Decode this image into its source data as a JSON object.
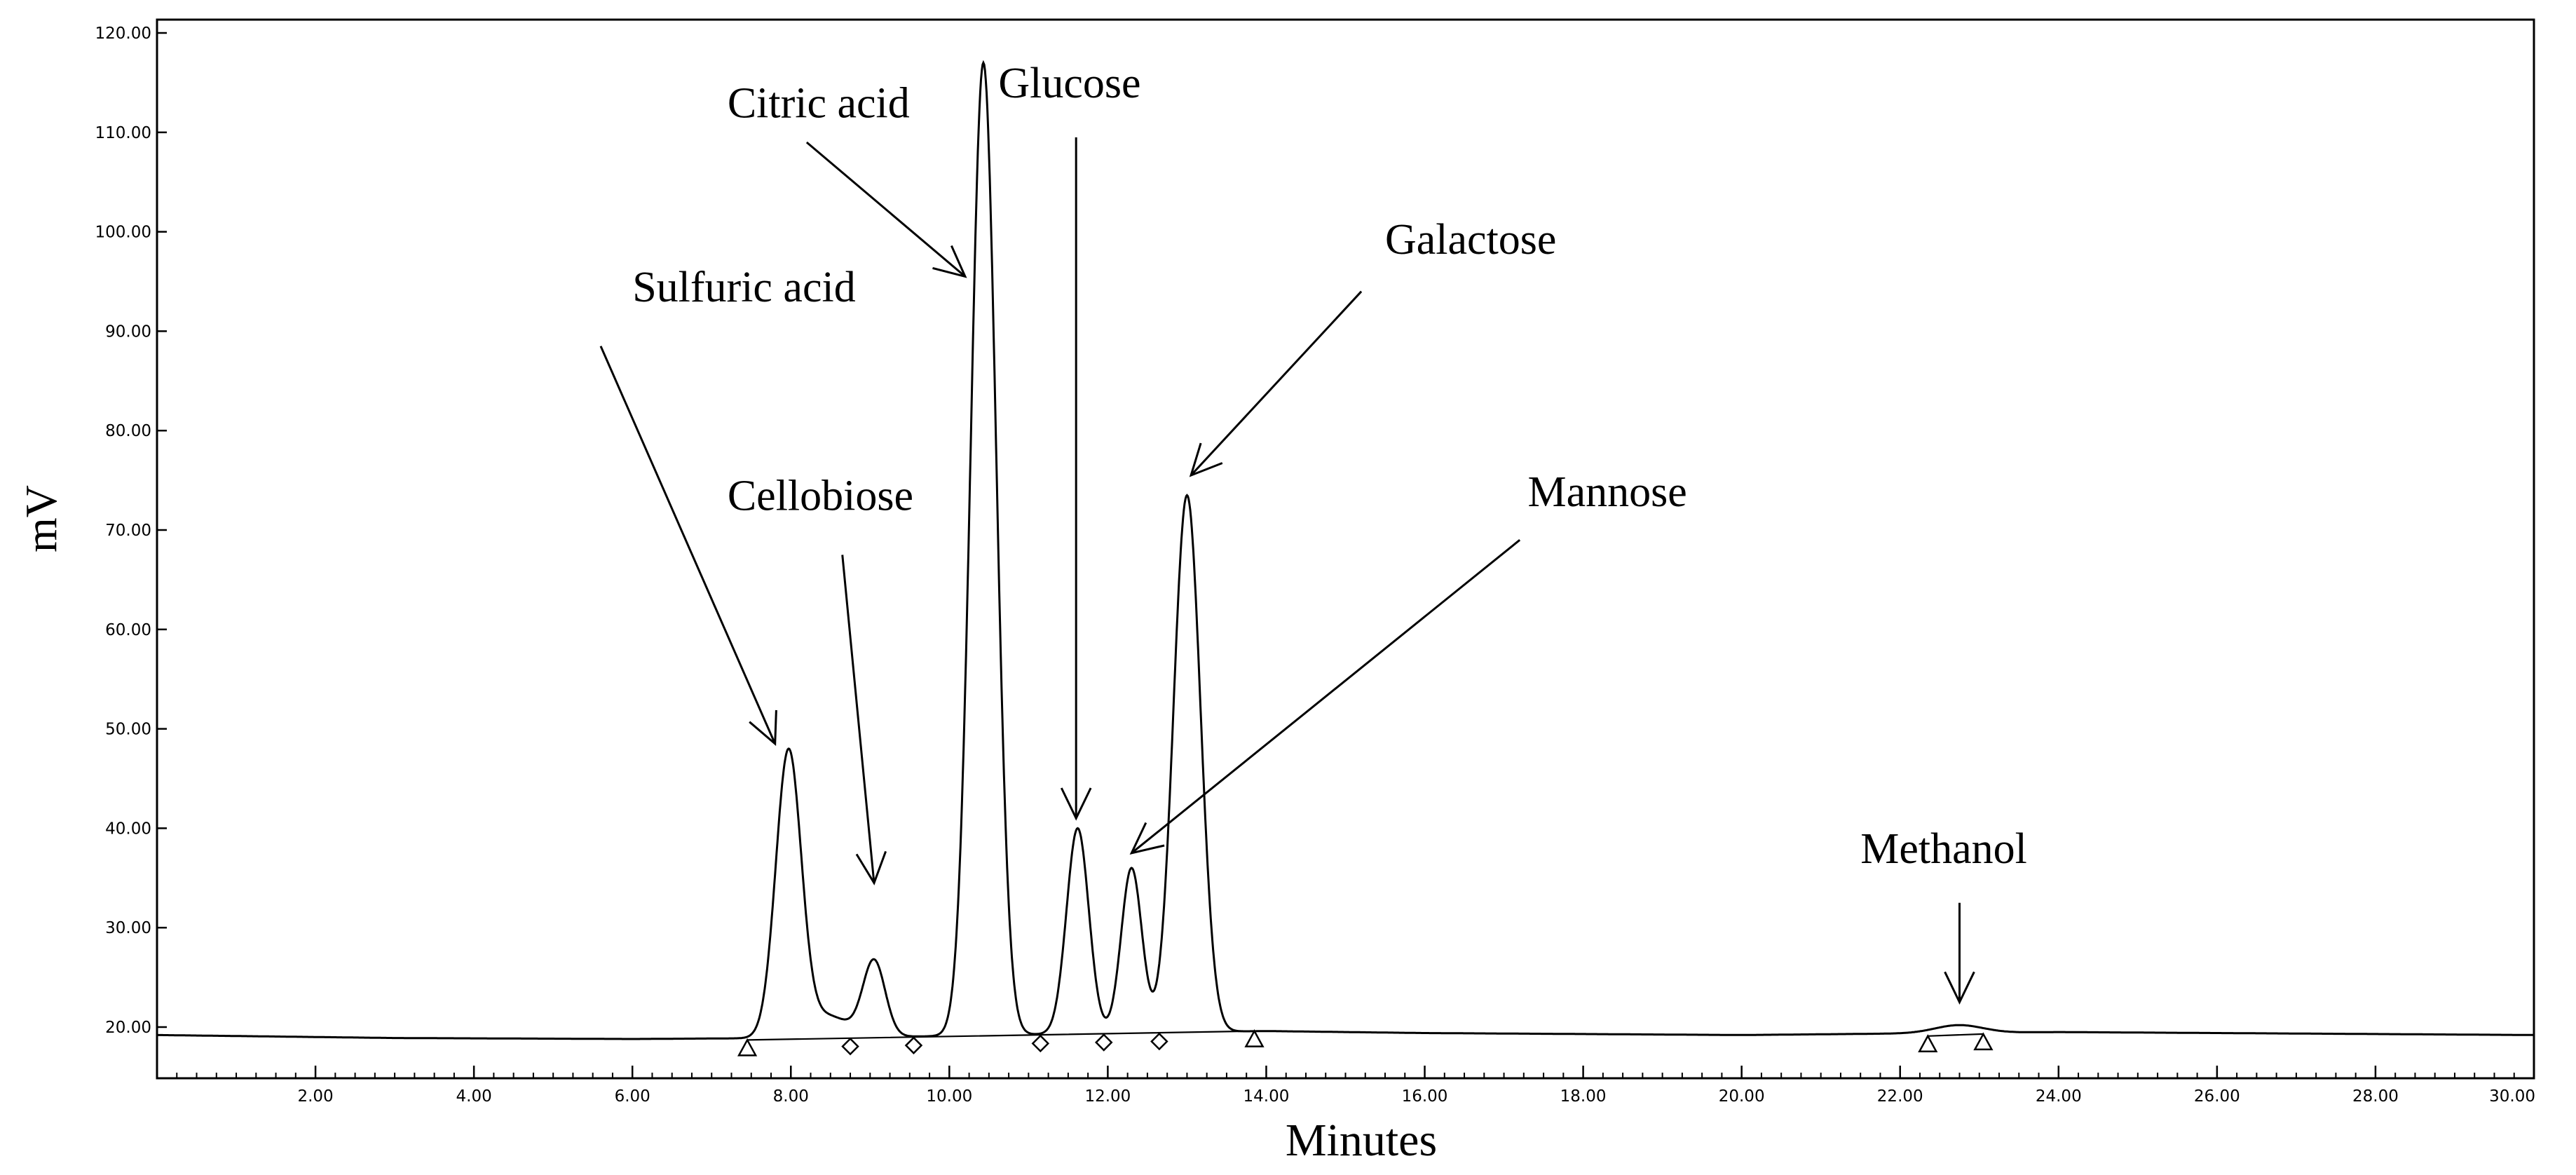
{
  "chart_data": {
    "type": "line",
    "title": "",
    "xlabel": "Minutes",
    "ylabel": "mV",
    "xlim": [
      0,
      30
    ],
    "ylim": [
      15,
      120
    ],
    "grid": false,
    "x_ticks": [
      2,
      4,
      6,
      8,
      10,
      12,
      14,
      16,
      18,
      20,
      22,
      24,
      26,
      28,
      30
    ],
    "x_tick_labels": [
      "2.00",
      "4.00",
      "6.00",
      "8.00",
      "10.00",
      "12.00",
      "14.00",
      "16.00",
      "18.00",
      "20.00",
      "22.00",
      "24.00",
      "26.00",
      "28.00",
      "30.00"
    ],
    "y_ticks": [
      20,
      30,
      40,
      50,
      60,
      70,
      80,
      90,
      100,
      110,
      120
    ],
    "y_tick_labels": [
      "20.00",
      "30.00",
      "40.00",
      "50.00",
      "60.00",
      "70.00",
      "80.00",
      "90.00",
      "100.00",
      "110.00",
      "120.00"
    ],
    "baseline": [
      [
        0,
        19.2
      ],
      [
        3,
        18.9
      ],
      [
        6,
        18.8
      ],
      [
        8,
        18.9
      ],
      [
        10,
        19.1
      ],
      [
        12,
        19.4
      ],
      [
        14,
        19.6
      ],
      [
        16,
        19.4
      ],
      [
        20,
        19.2
      ],
      [
        24,
        19.5
      ],
      [
        30,
        19.2
      ]
    ],
    "series": [
      {
        "peaks": [
          {
            "name": "Sulfuric acid",
            "rt": 7.97,
            "height": 47.5,
            "width": 0.16
          },
          {
            "name": "Cellobiose",
            "rt": 9.05,
            "height": 26.6,
            "width": 0.14
          },
          {
            "name": "Citric acid",
            "rt": 10.43,
            "height": 117,
            "width": 0.16
          },
          {
            "name": "Glucose",
            "rt": 11.62,
            "height": 40,
            "width": 0.14
          },
          {
            "name": "Mannose",
            "rt": 12.3,
            "height": 36,
            "width": 0.13
          },
          {
            "name": "Galactose",
            "rt": 13.0,
            "height": 73.5,
            "width": 0.17
          },
          {
            "name": "Methanol",
            "rt": 22.75,
            "height": 20.2,
            "width": 0.3
          }
        ]
      }
    ],
    "markers": [
      {
        "shape": "triangle",
        "x": 7.45,
        "y": 18.7
      },
      {
        "shape": "diamond",
        "x": 8.75,
        "y": 18.9
      },
      {
        "shape": "diamond",
        "x": 9.55,
        "y": 19.0
      },
      {
        "shape": "diamond",
        "x": 11.15,
        "y": 19.2
      },
      {
        "shape": "diamond",
        "x": 11.95,
        "y": 19.3
      },
      {
        "shape": "diamond",
        "x": 12.65,
        "y": 19.4
      },
      {
        "shape": "triangle",
        "x": 13.85,
        "y": 19.6
      },
      {
        "shape": "triangle",
        "x": 22.35,
        "y": 19.1
      },
      {
        "shape": "triangle",
        "x": 23.05,
        "y": 19.3
      }
    ],
    "annotations": [
      {
        "text": "Sulfuric acid",
        "tx": 6.0,
        "ty": 93,
        "ax1": 5.6,
        "ay1": 88.5,
        "ax2": 7.8,
        "ay2": 48.5
      },
      {
        "text": "Cellobiose",
        "tx": 7.2,
        "ty": 72,
        "ax1": 8.65,
        "ay1": 67.5,
        "ax2": 9.05,
        "ay2": 34.5
      },
      {
        "text": "Citric acid",
        "tx": 7.2,
        "ty": 111.5,
        "ax1": 8.2,
        "ay1": 109,
        "ax2": 10.2,
        "ay2": 95.5
      },
      {
        "text": "Glucose",
        "tx": 10.62,
        "ty": 113.5,
        "ax1": 11.6,
        "ay1": 109.5,
        "ax2": 11.6,
        "ay2": 41
      },
      {
        "text": "Galactose",
        "tx": 15.5,
        "ty": 97.8,
        "ax1": 15.2,
        "ay1": 94,
        "ax2": 13.05,
        "ay2": 75.5
      },
      {
        "text": "Mannose",
        "tx": 17.3,
        "ty": 72.4,
        "ax1": 17.2,
        "ay1": 69,
        "ax2": 12.3,
        "ay2": 37.5
      },
      {
        "text": "Methanol",
        "tx": 21.5,
        "ty": 36.5,
        "ax1": 22.75,
        "ay1": 32.5,
        "ax2": 22.75,
        "ay2": 22.5
      }
    ]
  }
}
